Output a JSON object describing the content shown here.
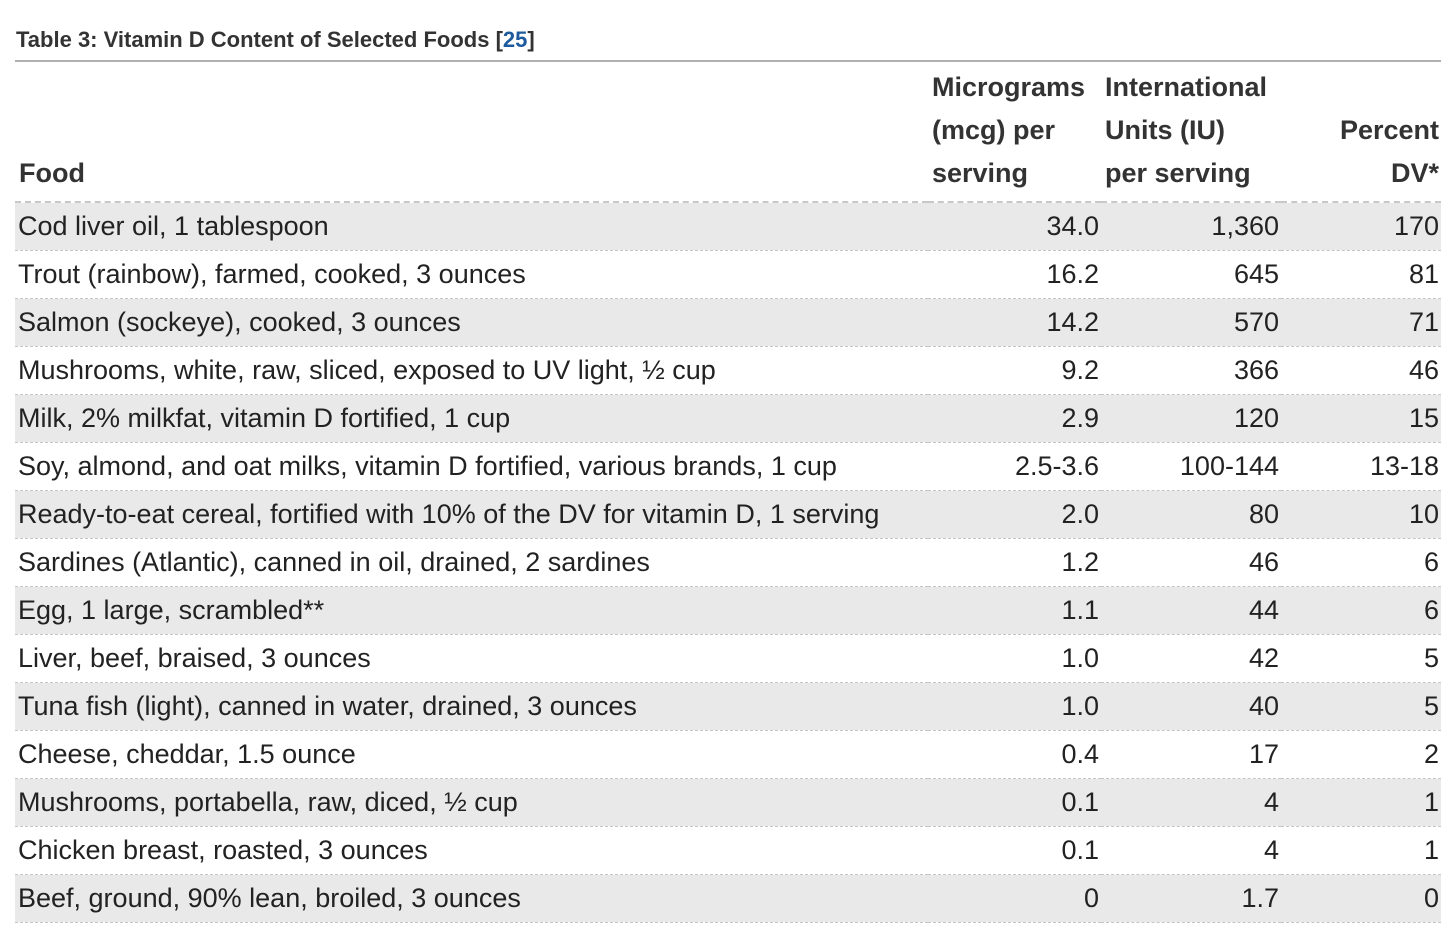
{
  "table": {
    "caption_prefix": "Table 3: Vitamin D Content of Selected Foods [",
    "caption_ref": "25",
    "caption_suffix": "]",
    "headers": {
      "food": "Food",
      "mcg_line1": "Micrograms",
      "mcg_line2": "(mcg) per",
      "mcg_line3": "serving",
      "iu_line1": "International",
      "iu_line2": "Units (IU)",
      "iu_line3": "per serving",
      "dv": "Percent DV*"
    },
    "rows": [
      {
        "food": "Cod liver oil, 1 tablespoon",
        "mcg": "34.0",
        "iu": "1,360",
        "dv": "170"
      },
      {
        "food": "Trout (rainbow), farmed, cooked, 3 ounces",
        "mcg": "16.2",
        "iu": "645",
        "dv": "81"
      },
      {
        "food": "Salmon (sockeye), cooked, 3 ounces",
        "mcg": "14.2",
        "iu": "570",
        "dv": "71"
      },
      {
        "food": "Mushrooms, white, raw, sliced, exposed to UV light, ½ cup",
        "mcg": "9.2",
        "iu": "366",
        "dv": "46"
      },
      {
        "food": "Milk, 2% milkfat, vitamin D fortified, 1 cup",
        "mcg": "2.9",
        "iu": "120",
        "dv": "15"
      },
      {
        "food": "Soy, almond, and oat milks, vitamin D fortified, various brands, 1 cup",
        "mcg": "2.5-3.6",
        "iu": "100-144",
        "dv": "13-18"
      },
      {
        "food": "Ready-to-eat cereal, fortified with 10% of the DV for vitamin D, 1 serving",
        "mcg": "2.0",
        "iu": "80",
        "dv": "10"
      },
      {
        "food": "Sardines (Atlantic), canned in oil, drained, 2 sardines",
        "mcg": "1.2",
        "iu": "46",
        "dv": "6"
      },
      {
        "food": "Egg, 1 large, scrambled**",
        "mcg": "1.1",
        "iu": "44",
        "dv": "6"
      },
      {
        "food": "Liver, beef, braised, 3 ounces",
        "mcg": "1.0",
        "iu": "42",
        "dv": "5"
      },
      {
        "food": "Tuna fish (light), canned in water, drained, 3 ounces",
        "mcg": "1.0",
        "iu": "40",
        "dv": "5"
      },
      {
        "food": "Cheese, cheddar, 1.5 ounce",
        "mcg": "0.4",
        "iu": "17",
        "dv": "2"
      },
      {
        "food": "Mushrooms, portabella, raw, diced, ½ cup",
        "mcg": "0.1",
        "iu": "4",
        "dv": "1"
      },
      {
        "food": "Chicken breast, roasted, 3 ounces",
        "mcg": "0.1",
        "iu": "4",
        "dv": "1"
      },
      {
        "food": "Beef, ground, 90% lean, broiled, 3 ounces",
        "mcg": "0",
        "iu": "1.7",
        "dv": "0"
      }
    ],
    "colors": {
      "ref_link": "#1d5a9e",
      "stripe": "#e9e9e9",
      "text": "#222222"
    }
  }
}
